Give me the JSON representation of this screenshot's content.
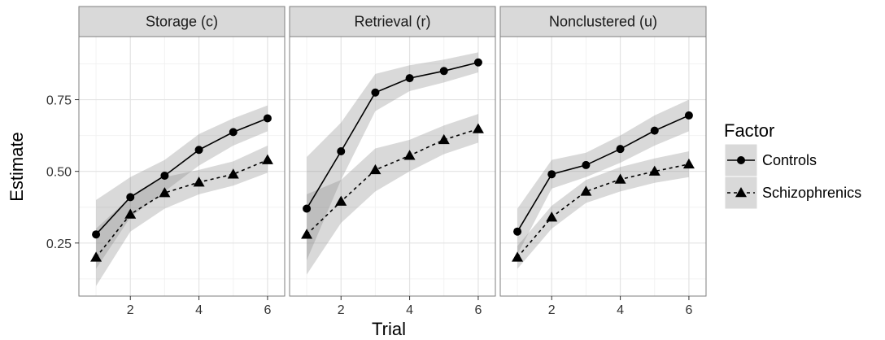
{
  "chart_data": {
    "type": "line",
    "xlabel": "Trial",
    "ylabel": "Estimate",
    "x": [
      1,
      2,
      3,
      4,
      5,
      6
    ],
    "xlim": [
      0.5,
      6.5
    ],
    "ylim": [
      0.065,
      0.97
    ],
    "x_ticks": [
      2,
      4,
      6
    ],
    "y_ticks": [
      0.25,
      0.5,
      0.75
    ],
    "y_tick_labels": [
      "0.25",
      "0.50",
      "0.75"
    ],
    "grid": true,
    "legend": {
      "title": "Factor",
      "placement": "right",
      "entries": [
        "Controls",
        "Schizophrenics"
      ]
    },
    "panels": [
      {
        "title": "Storage (c)",
        "series": [
          {
            "name": "Controls",
            "values": [
              0.28,
              0.41,
              0.485,
              0.575,
              0.637,
              0.685
            ],
            "lower": [
              0.16,
              0.34,
              0.43,
              0.52,
              0.59,
              0.64
            ],
            "upper": [
              0.4,
              0.48,
              0.54,
              0.63,
              0.685,
              0.73
            ]
          },
          {
            "name": "Schizophrenics",
            "values": [
              0.2,
              0.35,
              0.425,
              0.462,
              0.49,
              0.54
            ],
            "lower": [
              0.1,
              0.29,
              0.37,
              0.42,
              0.45,
              0.495
            ],
            "upper": [
              0.3,
              0.41,
              0.48,
              0.505,
              0.535,
              0.59
            ]
          }
        ]
      },
      {
        "title": "Retrieval (r)",
        "series": [
          {
            "name": "Controls",
            "values": [
              0.37,
              0.57,
              0.775,
              0.825,
              0.85,
              0.88
            ],
            "lower": [
              0.19,
              0.47,
              0.71,
              0.78,
              0.81,
              0.845
            ],
            "upper": [
              0.55,
              0.67,
              0.84,
              0.87,
              0.89,
              0.915
            ]
          },
          {
            "name": "Schizophrenics",
            "values": [
              0.28,
              0.395,
              0.505,
              0.555,
              0.61,
              0.648
            ],
            "lower": [
              0.14,
              0.32,
              0.43,
              0.5,
              0.56,
              0.6
            ],
            "upper": [
              0.42,
              0.47,
              0.58,
              0.61,
              0.66,
              0.7
            ]
          }
        ]
      },
      {
        "title": "Nonclustered (u)",
        "series": [
          {
            "name": "Controls",
            "values": [
              0.29,
              0.49,
              0.522,
              0.578,
              0.642,
              0.695
            ],
            "lower": [
              0.21,
              0.44,
              0.48,
              0.53,
              0.59,
              0.64
            ],
            "upper": [
              0.37,
              0.54,
              0.565,
              0.625,
              0.695,
              0.75
            ]
          },
          {
            "name": "Schizophrenics",
            "values": [
              0.2,
              0.34,
              0.43,
              0.472,
              0.5,
              0.525
            ],
            "lower": [
              0.16,
              0.3,
              0.39,
              0.43,
              0.46,
              0.48
            ],
            "upper": [
              0.24,
              0.38,
              0.47,
              0.515,
              0.545,
              0.57
            ]
          }
        ]
      }
    ]
  },
  "colors": {
    "ribbon": "#808080",
    "line": "#000000",
    "strip_bg": "#d9d9d9",
    "panel_border": "#7f7f7f",
    "grid_major": "#e3e3e3",
    "grid_minor": "#f2f2f2"
  }
}
